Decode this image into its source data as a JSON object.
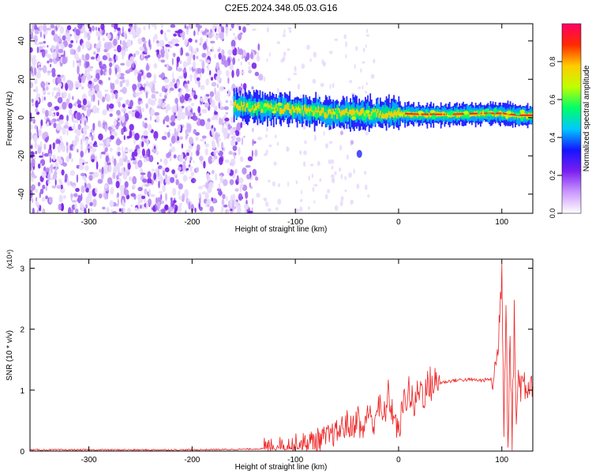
{
  "title": "C2E5.2024.348.05.03.G16",
  "chart_data": [
    {
      "type": "heatmap",
      "xlabel": "Height of straight line (km)",
      "ylabel": "Frequency (Hz)",
      "xlim": [
        -357,
        130
      ],
      "ylim": [
        -50,
        49
      ],
      "xticks": [
        -300,
        -200,
        -100,
        0,
        100
      ],
      "yticks": [
        -40,
        -20,
        0,
        20,
        40
      ],
      "grid": false,
      "noise_region_x": [
        -357,
        -130
      ],
      "signal_region_x": [
        -160,
        130
      ],
      "signal_center_freq": [
        {
          "x": -160,
          "y": 6
        },
        {
          "x": -140,
          "y": 5
        },
        {
          "x": -120,
          "y": 5
        },
        {
          "x": -100,
          "y": 4
        },
        {
          "x": -80,
          "y": 3
        },
        {
          "x": -60,
          "y": 2
        },
        {
          "x": -40,
          "y": 2
        },
        {
          "x": -20,
          "y": 2
        },
        {
          "x": 0,
          "y": 2
        },
        {
          "x": 20,
          "y": 1.5
        },
        {
          "x": 50,
          "y": 1.5
        },
        {
          "x": 80,
          "y": 2
        },
        {
          "x": 100,
          "y": 2
        },
        {
          "x": 115,
          "y": 1
        },
        {
          "x": 130,
          "y": 1
        }
      ],
      "secondary_feature": [
        {
          "x": -55,
          "y": -8
        },
        {
          "x": -45,
          "y": -13
        },
        {
          "x": -38,
          "y": -19
        }
      ],
      "colorbar": {
        "label": "Normalized spectral amplitude",
        "range": [
          0,
          1
        ],
        "ticks": [
          0.0,
          0.2,
          0.4,
          0.6,
          0.8
        ],
        "tick_labels": [
          "0.0",
          "0.2",
          "0.4",
          "0.6",
          "0.8"
        ],
        "colors": [
          "#ffffff",
          "#cc99ff",
          "#7a1ff0",
          "#1515ff",
          "#00c8ff",
          "#00ff66",
          "#c0ff00",
          "#ffcc00",
          "#ff2a00",
          "#ff0066"
        ]
      }
    },
    {
      "type": "line",
      "xlabel": "Height of straight line (km)",
      "ylabel": "SNR (10 * v/v)",
      "scale_label": "(x10⁴)",
      "xlim": [
        -357,
        130
      ],
      "ylim": [
        0,
        3.15
      ],
      "xticks": [
        -300,
        -200,
        -100,
        0,
        100
      ],
      "yticks": [
        0,
        1,
        2,
        3
      ],
      "grid": false,
      "series": [
        {
          "color": "#ee2222",
          "x": [
            -357,
            -300,
            -250,
            -200,
            -150,
            -130,
            -110,
            -100,
            -90,
            -80,
            -70,
            -60,
            -50,
            -45,
            -40,
            -35,
            -30,
            -25,
            -20,
            -15,
            -10,
            -5,
            0,
            5,
            10,
            15,
            20,
            25,
            30,
            40,
            50,
            60,
            70,
            80,
            85,
            90,
            95,
            98,
            100,
            102,
            104,
            106,
            108,
            110,
            112,
            114,
            116,
            120,
            125,
            130
          ],
          "y": [
            0.02,
            0.02,
            0.02,
            0.02,
            0.03,
            0.04,
            0.06,
            0.1,
            0.12,
            0.18,
            0.22,
            0.3,
            0.45,
            0.35,
            0.6,
            0.25,
            0.7,
            0.4,
            0.8,
            0.5,
            0.9,
            0.6,
            0.3,
            0.8,
            1.0,
            0.7,
            1.05,
            0.95,
            1.1,
            1.12,
            1.15,
            1.17,
            1.17,
            1.16,
            1.17,
            1.18,
            1.4,
            2.2,
            3.1,
            0.4,
            2.5,
            0.2,
            2.0,
            0.1,
            2.3,
            0.5,
            1.15,
            1.12,
            1.13,
            1.12
          ]
        }
      ]
    }
  ]
}
